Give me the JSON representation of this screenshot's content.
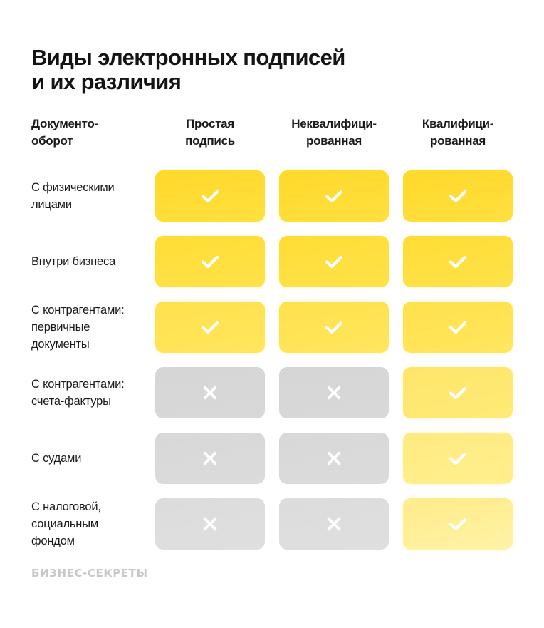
{
  "title": {
    "line1": "Виды электронных подписей",
    "line2": "и их различия"
  },
  "columns": [
    {
      "line1": "Документо-",
      "line2": "оборот"
    },
    {
      "line1": "Простая",
      "line2": "подпись"
    },
    {
      "line1": "Неквалифици-",
      "line2": "рованная"
    },
    {
      "line1": "Квалифици-",
      "line2": "рованная"
    }
  ],
  "rows": [
    {
      "label_lines": [
        "С физическими",
        "лицами"
      ],
      "values": [
        "yes",
        "yes",
        "yes"
      ]
    },
    {
      "label_lines": [
        "Внутри бизнеса"
      ],
      "values": [
        "yes",
        "yes",
        "yes"
      ]
    },
    {
      "label_lines": [
        "С контрагентами:",
        "первичные",
        "документы"
      ],
      "values": [
        "yes",
        "yes",
        "yes"
      ]
    },
    {
      "label_lines": [
        "С контрагентами:",
        "счета-фактуры"
      ],
      "values": [
        "no",
        "no",
        "yes"
      ]
    },
    {
      "label_lines": [
        "С судами"
      ],
      "values": [
        "no",
        "no",
        "yes"
      ]
    },
    {
      "label_lines": [
        "С налоговой,",
        "социальным",
        "фондом"
      ],
      "values": [
        "no",
        "no",
        "yes"
      ]
    }
  ],
  "icons": {
    "yes": "check-icon",
    "no": "cross-icon"
  },
  "colors": {
    "yes_rows": [
      [
        "#ffd92a",
        "#ffe040"
      ],
      [
        "#ffdd35",
        "#ffe24a"
      ],
      [
        "#ffe14a",
        "#ffe660"
      ],
      [
        "#ffe66a",
        "#ffea78"
      ],
      [
        "#ffea80",
        "#fff08e"
      ],
      [
        "#ffeb8a",
        "#fff3a6"
      ]
    ],
    "no_rows": [
      [
        "#d6d6d6",
        "#d8d8d8"
      ],
      [
        "#d8d8d8",
        "#dbdbdb"
      ],
      [
        "#dcdcdc",
        "#dfdfdf"
      ]
    ],
    "icon": "#ffffff"
  },
  "footer": "БИЗНЕС-СЕКРЕТЫ"
}
